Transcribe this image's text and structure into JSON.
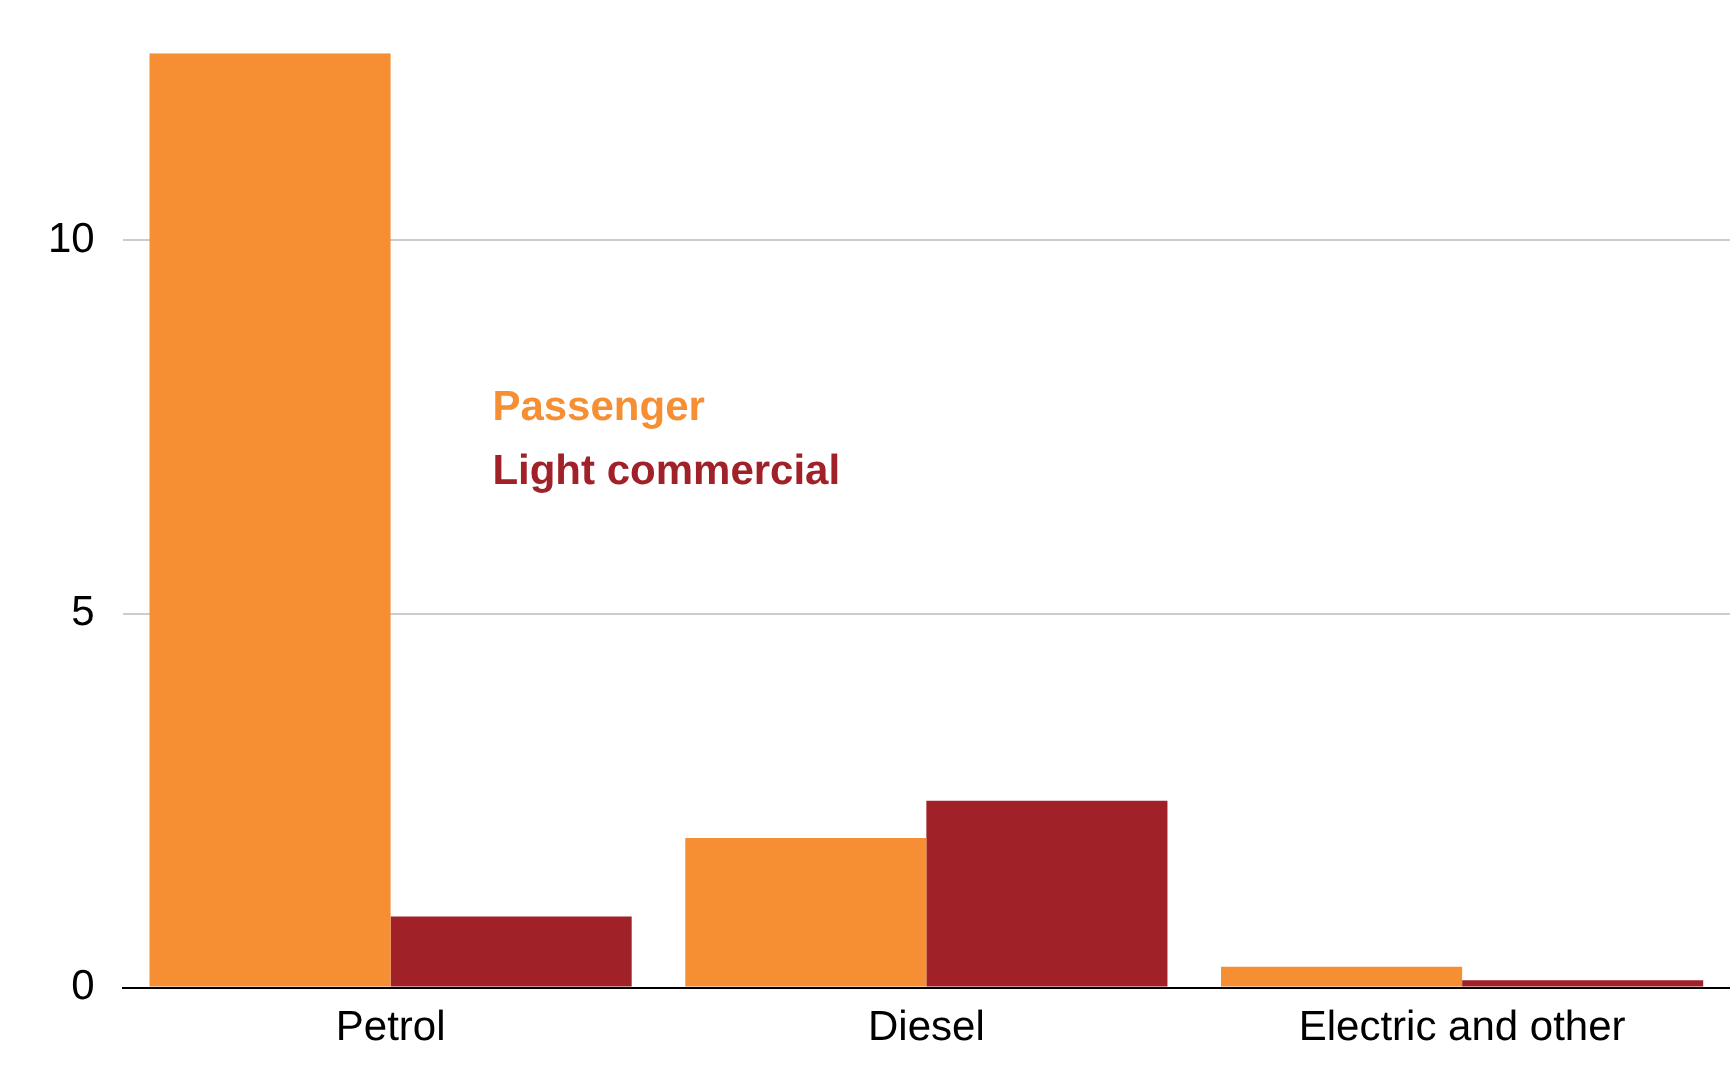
{
  "chart_data": {
    "type": "bar",
    "categories": [
      "Petrol",
      "Diesel",
      "Electric and other"
    ],
    "series": [
      {
        "name": "Passenger",
        "color": "#f68e33",
        "values": [
          12.5,
          2.0,
          0.28
        ]
      },
      {
        "name": "Light commercial",
        "color": "#a02128",
        "values": [
          0.95,
          2.5,
          0.1
        ]
      }
    ],
    "ylim": [
      0,
      12.5
    ],
    "yticks": [
      0,
      5,
      10
    ],
    "grid": "y",
    "legend": "center"
  }
}
